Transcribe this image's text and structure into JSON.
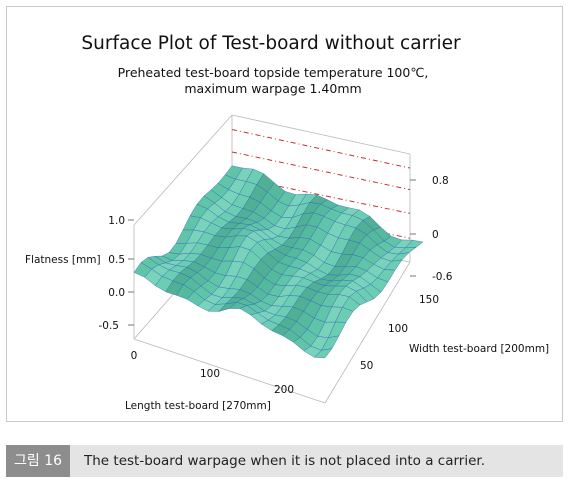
{
  "chart_data": {
    "type": "surface",
    "title": "Surface Plot of Test-board without carrier",
    "subtitle_lines": [
      "Preheated test-board topside temperature 100℃,",
      "maximum warpage 1.40mm"
    ],
    "zlabel": "Flatness [mm]",
    "xlabel": "Length test-board [270mm]",
    "ylabel": "Width test-board [200mm]",
    "x_ticks": [
      "0",
      "100",
      "200"
    ],
    "y_ticks": [
      "50",
      "100",
      "150"
    ],
    "z_ticks_left": [
      "1.0",
      "0.5",
      "0.0",
      "-0.5"
    ],
    "z_ticks_right": [
      "0.8",
      "0",
      "-0.6"
    ],
    "surface_color": "#5fc4a8",
    "mesh_color": "#2c5fb8"
  },
  "caption": {
    "label": "그림 16",
    "text": "The test-board warpage when it is not placed into a carrier."
  }
}
